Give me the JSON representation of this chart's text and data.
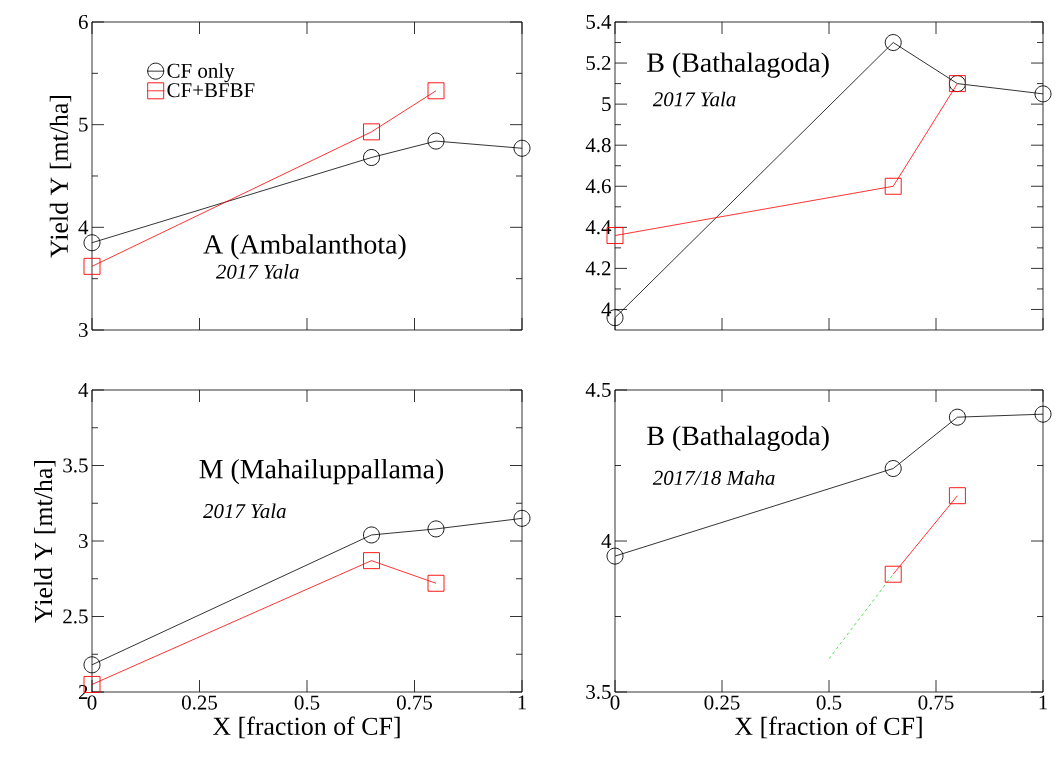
{
  "chart_data": [
    {
      "type": "line",
      "title": "A (Ambalanthota)",
      "subtitle": "2017 Yala",
      "ylabel": "Yield Y [mt/ha]",
      "xlim": [
        0,
        1
      ],
      "ylim": [
        3,
        6
      ],
      "xticks": [
        0,
        0.25,
        0.5,
        0.75,
        1
      ],
      "yticks": [
        3,
        4,
        5,
        6
      ],
      "tick_labels": "y",
      "legend": "top left",
      "series": [
        {
          "name": "CF only",
          "color": "#000000",
          "marker": "circle",
          "x": [
            0,
            0.65,
            0.8,
            1
          ],
          "values": [
            3.85,
            4.68,
            4.84,
            4.77
          ]
        },
        {
          "name": "CF+BFBF",
          "color": "#ff0000",
          "marker": "square",
          "x": [
            0,
            0.65,
            0.8
          ],
          "values": [
            3.62,
            4.93,
            5.33
          ]
        }
      ]
    },
    {
      "type": "line",
      "title": "B (Bathalagoda)",
      "subtitle": "2017 Yala",
      "xlim": [
        0,
        1
      ],
      "ylim": [
        3.9,
        5.4
      ],
      "xticks": [
        0,
        0.25,
        0.5,
        0.75,
        1
      ],
      "yticks": [
        4,
        4.2,
        4.4,
        4.6,
        4.8,
        5,
        5.2,
        5.4
      ],
      "tick_labels": "y",
      "series": [
        {
          "color": "#000000",
          "marker": "circle",
          "x": [
            0,
            0.65,
            0.8,
            1
          ],
          "values": [
            3.96,
            5.3,
            5.1,
            5.05
          ]
        },
        {
          "color": "#ff0000",
          "marker": "square",
          "x": [
            0,
            0.65,
            0.8
          ],
          "values": [
            4.36,
            4.6,
            5.1
          ]
        }
      ]
    },
    {
      "type": "line",
      "title": "M (Mahailuppallama)",
      "subtitle": "2017 Yala",
      "xlabel": "X [fraction of CF]",
      "ylabel": "Yield Y [mt/ha]",
      "xlim": [
        0,
        1
      ],
      "ylim": [
        2,
        4
      ],
      "xticks": [
        0,
        0.25,
        0.5,
        0.75,
        1
      ],
      "yticks": [
        2,
        2.5,
        3,
        3.5,
        4
      ],
      "series": [
        {
          "color": "#000000",
          "marker": "circle",
          "x": [
            0,
            0.65,
            0.8,
            1
          ],
          "values": [
            2.18,
            3.04,
            3.08,
            3.15
          ]
        },
        {
          "color": "#ff0000",
          "marker": "square",
          "x": [
            0,
            0.65,
            0.8
          ],
          "values": [
            2.05,
            2.87,
            2.72
          ]
        }
      ]
    },
    {
      "type": "line",
      "title": "B (Bathalagoda)",
      "subtitle": "2017/18 Maha",
      "xlabel": "X [fraction of CF]",
      "xlim": [
        0,
        1
      ],
      "ylim": [
        3.5,
        4.5
      ],
      "xticks": [
        0,
        0.25,
        0.5,
        0.75,
        1
      ],
      "yticks": [
        3.5,
        4,
        4.5
      ],
      "series": [
        {
          "color": "#000000",
          "marker": "circle",
          "x": [
            0,
            0.65,
            0.8,
            1
          ],
          "values": [
            3.95,
            4.24,
            4.41,
            4.42
          ]
        },
        {
          "color": "#ff0000",
          "marker": "square",
          "x": [
            0.65,
            0.8
          ],
          "values": [
            3.89,
            4.15
          ]
        },
        {
          "color": "#22dd22",
          "marker": "none",
          "line_style": "dashed",
          "x": [
            0.5,
            0.65
          ],
          "values": [
            3.61,
            3.89
          ]
        }
      ]
    }
  ]
}
